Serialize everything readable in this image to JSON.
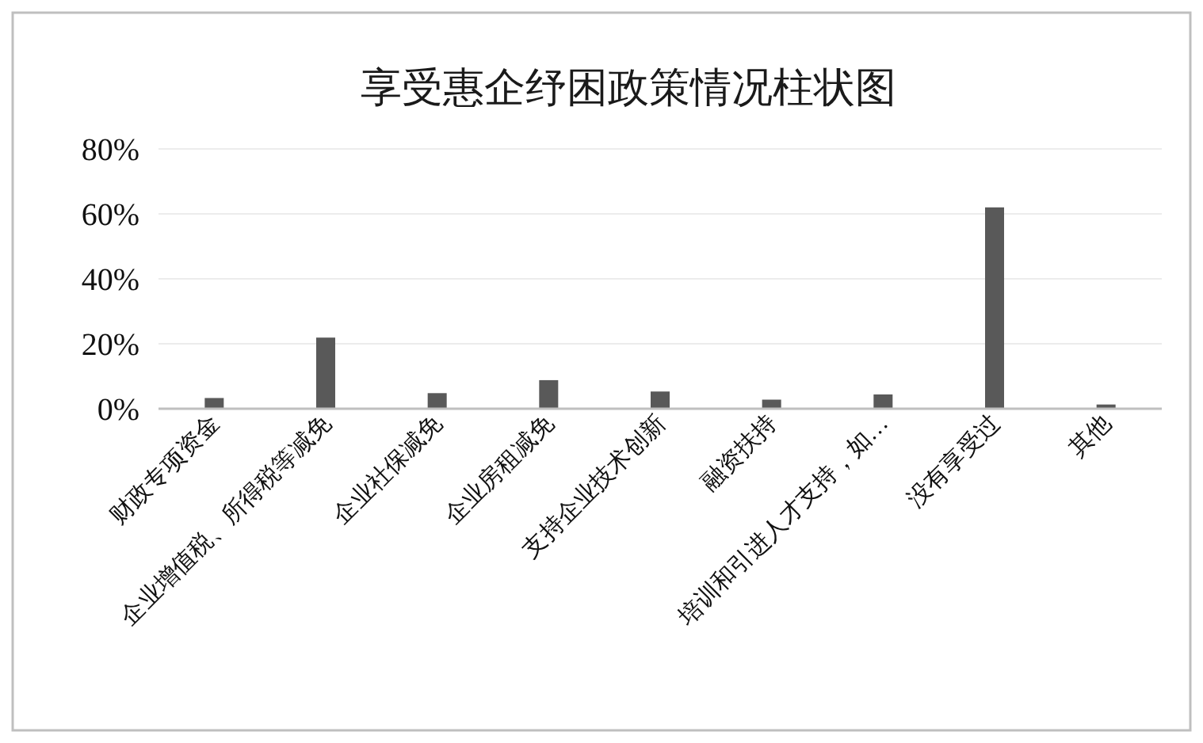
{
  "chart_data": {
    "type": "bar",
    "title": "享受惠企纾困政策情况柱状图",
    "categories": [
      "财政专项资金",
      "企业增值税、所得税等减免",
      "企业社保减免",
      "企业房租减免",
      "支持企业技术创新",
      "融资扶持",
      "培训和引进人才支持，如…",
      "没有享受过",
      "其他"
    ],
    "values": [
      3.3,
      21.9,
      4.8,
      8.8,
      5.3,
      2.8,
      4.4,
      62.0,
      1.3
    ],
    "color": "#595959",
    "ylim": [
      0,
      80
    ],
    "yticks": [
      {
        "value": 0,
        "label": "0%"
      },
      {
        "value": 20,
        "label": "20%"
      },
      {
        "value": 40,
        "label": "40%"
      },
      {
        "value": 60,
        "label": "60%"
      },
      {
        "value": 80,
        "label": "80%"
      }
    ],
    "grid": "y"
  }
}
